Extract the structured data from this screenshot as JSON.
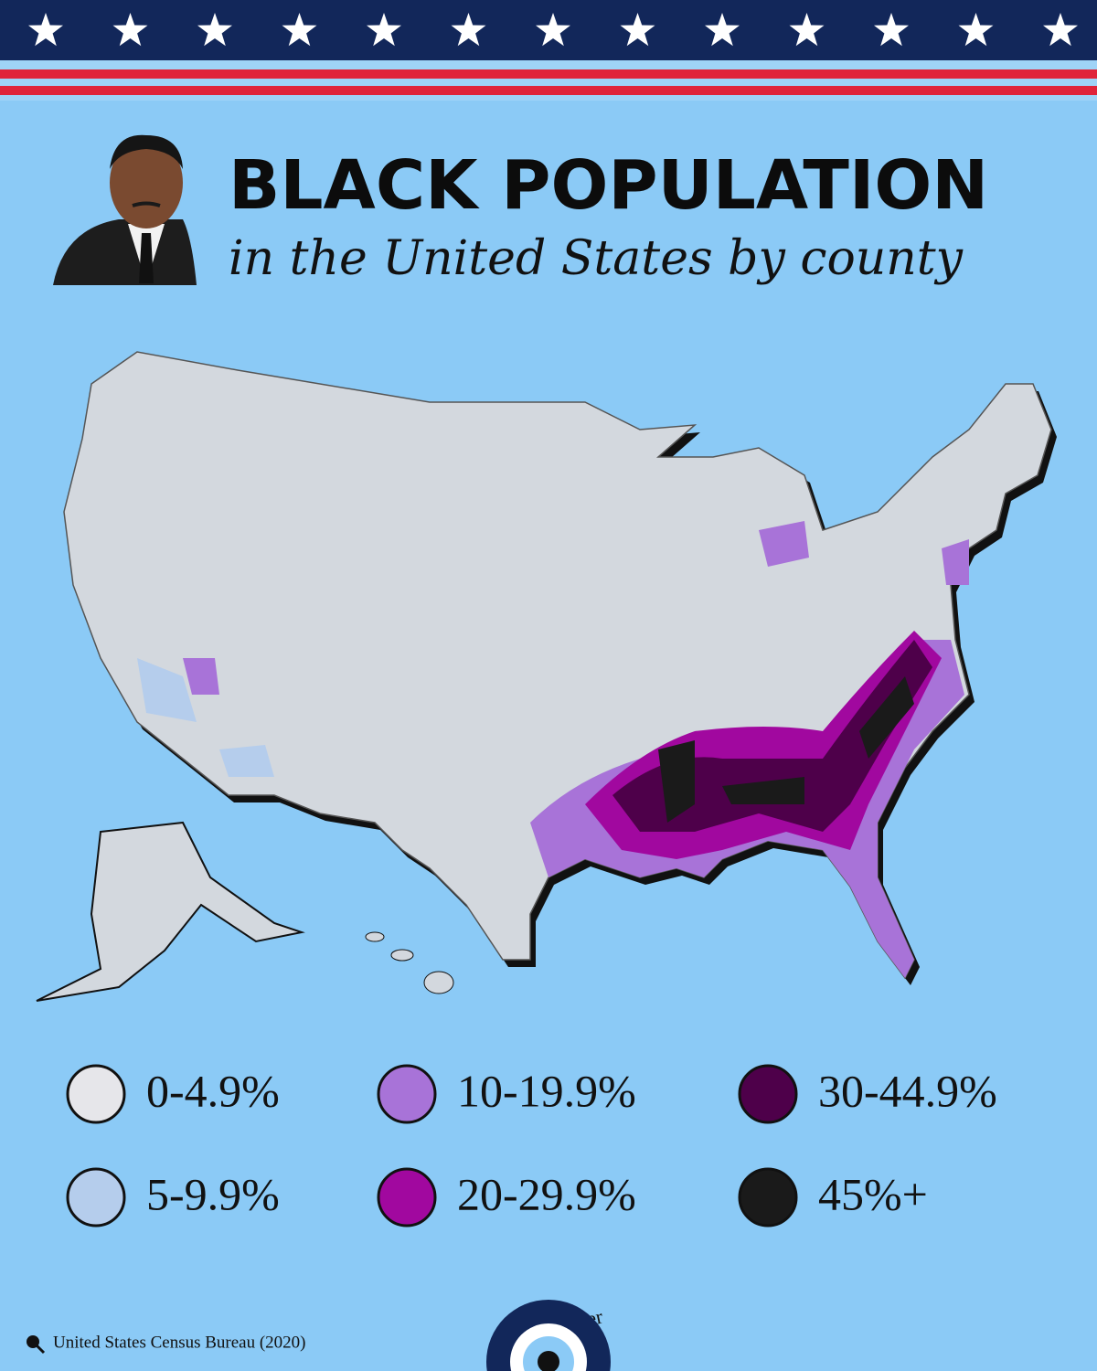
{
  "header": {
    "title": "BLACK POPULATION",
    "subtitle": "in the United States by county"
  },
  "legend": {
    "items": [
      {
        "label": "0-4.9%",
        "color": "#e6e6ea"
      },
      {
        "label": "5-9.9%",
        "color": "#b5cdec"
      },
      {
        "label": "10-19.9%",
        "color": "#a873d8"
      },
      {
        "label": "20-29.9%",
        "color": "#a1089f"
      },
      {
        "label": "30-44.9%",
        "color": "#4e004a"
      },
      {
        "label": "45%+",
        "color": "#1a1a1a"
      }
    ]
  },
  "source": "United States Census Bureau (2020)",
  "credit": "© Civixplorer"
}
